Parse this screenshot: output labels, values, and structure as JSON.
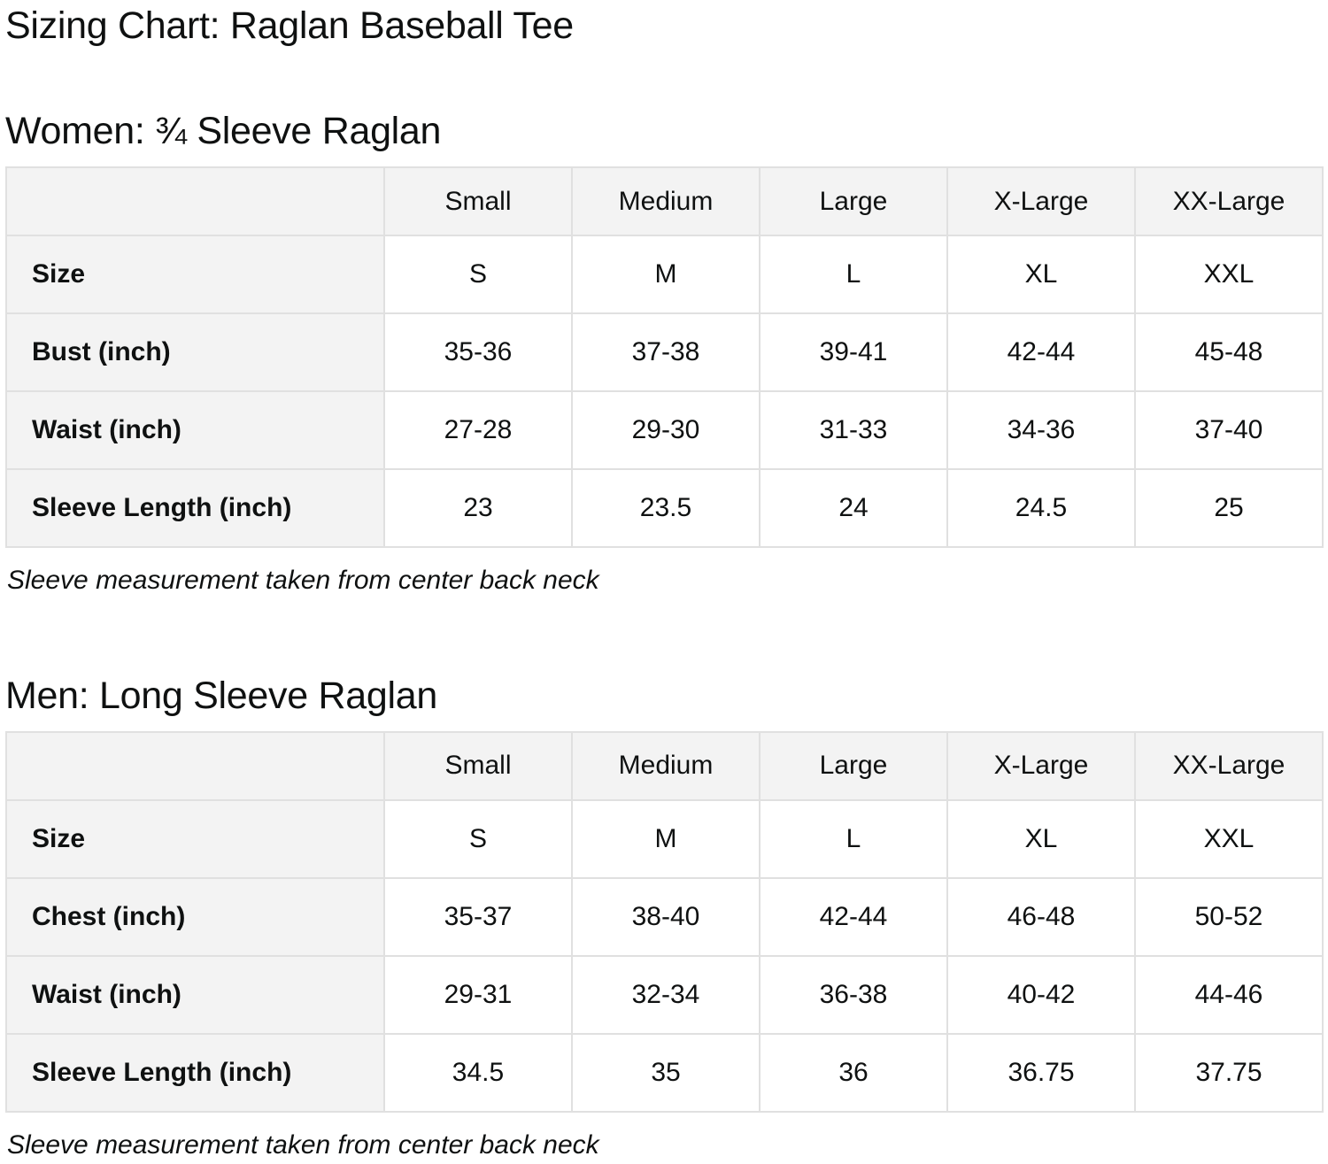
{
  "page": {
    "title": "Sizing Chart: Raglan Baseball Tee"
  },
  "colors": {
    "header_bg": "#f3f3f3",
    "border": "#e0e0e0",
    "text": "#0f1111",
    "cell_bg": "#ffffff"
  },
  "tables": [
    {
      "heading": "Women: ¾ Sleeve Raglan",
      "columns": [
        "Small",
        "Medium",
        "Large",
        "X-Large",
        "XX-Large"
      ],
      "rows": [
        {
          "label": "Size",
          "values": [
            "S",
            "M",
            "L",
            "XL",
            "XXL"
          ]
        },
        {
          "label": "Bust (inch)",
          "values": [
            "35-36",
            "37-38",
            "39-41",
            "42-44",
            "45-48"
          ]
        },
        {
          "label": "Waist (inch)",
          "values": [
            "27-28",
            "29-30",
            "31-33",
            "34-36",
            "37-40"
          ]
        },
        {
          "label": "Sleeve Length (inch)",
          "values": [
            "23",
            "23.5",
            "24",
            "24.5",
            "25"
          ]
        }
      ],
      "note": "Sleeve measurement taken from center back neck"
    },
    {
      "heading": "Men: Long Sleeve Raglan",
      "columns": [
        "Small",
        "Medium",
        "Large",
        "X-Large",
        "XX-Large"
      ],
      "rows": [
        {
          "label": "Size",
          "values": [
            "S",
            "M",
            "L",
            "XL",
            "XXL"
          ]
        },
        {
          "label": "Chest (inch)",
          "values": [
            "35-37",
            "38-40",
            "42-44",
            "46-48",
            "50-52"
          ]
        },
        {
          "label": "Waist (inch)",
          "values": [
            "29-31",
            "32-34",
            "36-38",
            "40-42",
            "44-46"
          ]
        },
        {
          "label": "Sleeve Length (inch)",
          "values": [
            "34.5",
            "35",
            "36",
            "36.75",
            "37.75"
          ]
        }
      ],
      "note": "Sleeve measurement taken from center back neck"
    }
  ]
}
